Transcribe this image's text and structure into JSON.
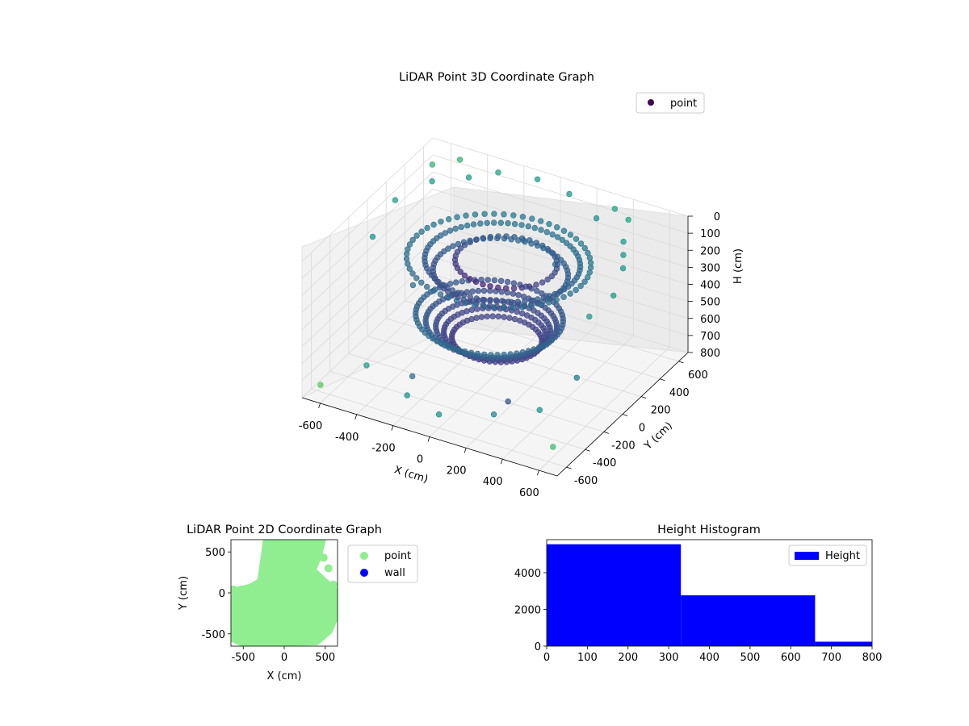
{
  "colors": {
    "wall": "#0000ff",
    "point_2d": "#90ee90",
    "histogram": "#0000ff",
    "point_3d_legend": "#440154"
  },
  "chart_data": [
    {
      "type": "scatter3d",
      "title": "LiDAR Point 3D Coordinate Graph",
      "xlabel": "X (cm)",
      "ylabel": "Y (cm)",
      "zlabel": "H (cm)",
      "xlim": [
        -700,
        700
      ],
      "ylim": [
        -700,
        700
      ],
      "zlim": [
        0,
        800
      ],
      "z_inverted": true,
      "colormap": "viridis",
      "x_ticks": [
        "-600",
        "-400",
        "-200",
        "0",
        "200",
        "400",
        "600"
      ],
      "y_ticks": [
        "-600",
        "-400",
        "-200",
        "0",
        "200",
        "400",
        "600"
      ],
      "z_ticks": [
        "0",
        "100",
        "200",
        "300",
        "400",
        "500",
        "600",
        "700",
        "800"
      ],
      "legend": {
        "entries": [
          "point"
        ],
        "placement": "top-right"
      },
      "series": [
        {
          "name": "point",
          "rings": [
            {
              "r": 380,
              "h": 180,
              "y0": 80,
              "n": 70
            },
            {
              "r": 330,
              "h": 230,
              "y0": 60,
              "n": 60
            },
            {
              "r": 450,
              "h": 150,
              "y0": 40,
              "n": 60
            },
            {
              "r": 250,
              "h": 200,
              "y0": 120,
              "n": 40
            },
            {
              "r": 360,
              "h": 430,
              "y0": -60,
              "n": 70
            },
            {
              "r": 320,
              "h": 480,
              "y0": -40,
              "n": 70
            },
            {
              "r": 280,
              "h": 520,
              "y0": -20,
              "n": 60
            },
            {
              "r": 250,
              "h": 560,
              "y0": 0,
              "n": 55
            },
            {
              "r": 220,
              "h": 600,
              "y0": 20,
              "n": 50
            }
          ],
          "points": [
            [
              -600,
              500,
              20
            ],
            [
              -500,
              600,
              10
            ],
            [
              -300,
              620,
              30
            ],
            [
              -100,
              650,
              20
            ],
            [
              100,
              600,
              15
            ],
            [
              300,
              500,
              40
            ],
            [
              500,
              400,
              60
            ],
            [
              600,
              200,
              80
            ],
            [
              650,
              0,
              120
            ],
            [
              620,
              -200,
              150
            ],
            [
              -650,
              200,
              90
            ],
            [
              -620,
              -100,
              140
            ],
            [
              -550,
              400,
              50
            ],
            [
              -400,
              500,
              30
            ],
            [
              450,
              550,
              25
            ],
            [
              350,
              600,
              20
            ],
            [
              550,
              300,
              70
            ],
            [
              -200,
              -550,
              700
            ],
            [
              0,
              -600,
              720
            ],
            [
              250,
              -500,
              690
            ],
            [
              450,
              -400,
              650
            ],
            [
              -500,
              -400,
              700
            ],
            [
              -650,
              -600,
              760
            ],
            [
              600,
              -550,
              740
            ],
            [
              -300,
              -300,
              750
            ],
            [
              200,
              -250,
              760
            ],
            [
              500,
              -100,
              600
            ],
            [
              -100,
              500,
              300
            ],
            [
              100,
              450,
              350
            ],
            [
              -450,
              0,
              420
            ]
          ]
        }
      ]
    },
    {
      "type": "scatter",
      "title": "LiDAR Point 2D Coordinate Graph",
      "xlabel": "X (cm)",
      "ylabel": "Y (cm)",
      "xlim": [
        -650,
        650
      ],
      "ylim": [
        -650,
        650
      ],
      "x_ticks": [
        "-500",
        "0",
        "500"
      ],
      "y_ticks": [
        "-500",
        "0",
        "500"
      ],
      "legend": {
        "entries": [
          "point",
          "wall"
        ],
        "placement": "outside-right"
      },
      "series": [
        {
          "name": "point",
          "blob": [
            [
              -650,
              -560
            ],
            [
              -650,
              -80
            ],
            [
              -560,
              50
            ],
            [
              -420,
              80
            ],
            [
              -300,
              150
            ],
            [
              -260,
              420
            ],
            [
              -230,
              650
            ],
            [
              480,
              650
            ],
            [
              430,
              450
            ],
            [
              360,
              280
            ],
            [
              500,
              150
            ],
            [
              620,
              40
            ],
            [
              640,
              -280
            ],
            [
              560,
              -470
            ],
            [
              400,
              -610
            ],
            [
              100,
              -620
            ],
            [
              -250,
              -650
            ],
            [
              -500,
              -630
            ]
          ],
          "points": [
            [
              -600,
              -200
            ],
            [
              -560,
              -480
            ],
            [
              -480,
              -520
            ],
            [
              -350,
              -600
            ],
            [
              -150,
              -590
            ],
            [
              150,
              -560
            ],
            [
              380,
              -580
            ],
            [
              460,
              -520
            ],
            [
              540,
              -420
            ],
            [
              610,
              -220
            ],
            [
              600,
              100
            ],
            [
              540,
              300
            ],
            [
              480,
              430
            ],
            [
              400,
              500
            ],
            [
              -200,
              480
            ],
            [
              -150,
              560
            ],
            [
              120,
              620
            ],
            [
              300,
              620
            ],
            [
              -620,
              40
            ],
            [
              -520,
              -300
            ]
          ]
        },
        {
          "name": "wall",
          "points": []
        }
      ]
    },
    {
      "type": "bar",
      "title": "Height Histogram",
      "xlim": [
        0,
        800
      ],
      "ylim": [
        0,
        5800
      ],
      "x_ticks": [
        "0",
        "100",
        "200",
        "300",
        "400",
        "500",
        "600",
        "700",
        "800"
      ],
      "y_ticks": [
        "0",
        "2000",
        "4000"
      ],
      "legend": {
        "entries": [
          "Height"
        ],
        "placement": "top-right"
      },
      "bins": [
        {
          "from": 0,
          "to": 330,
          "count": 5550
        },
        {
          "from": 330,
          "to": 660,
          "count": 2770
        },
        {
          "from": 660,
          "to": 800,
          "count": 240
        }
      ]
    }
  ]
}
